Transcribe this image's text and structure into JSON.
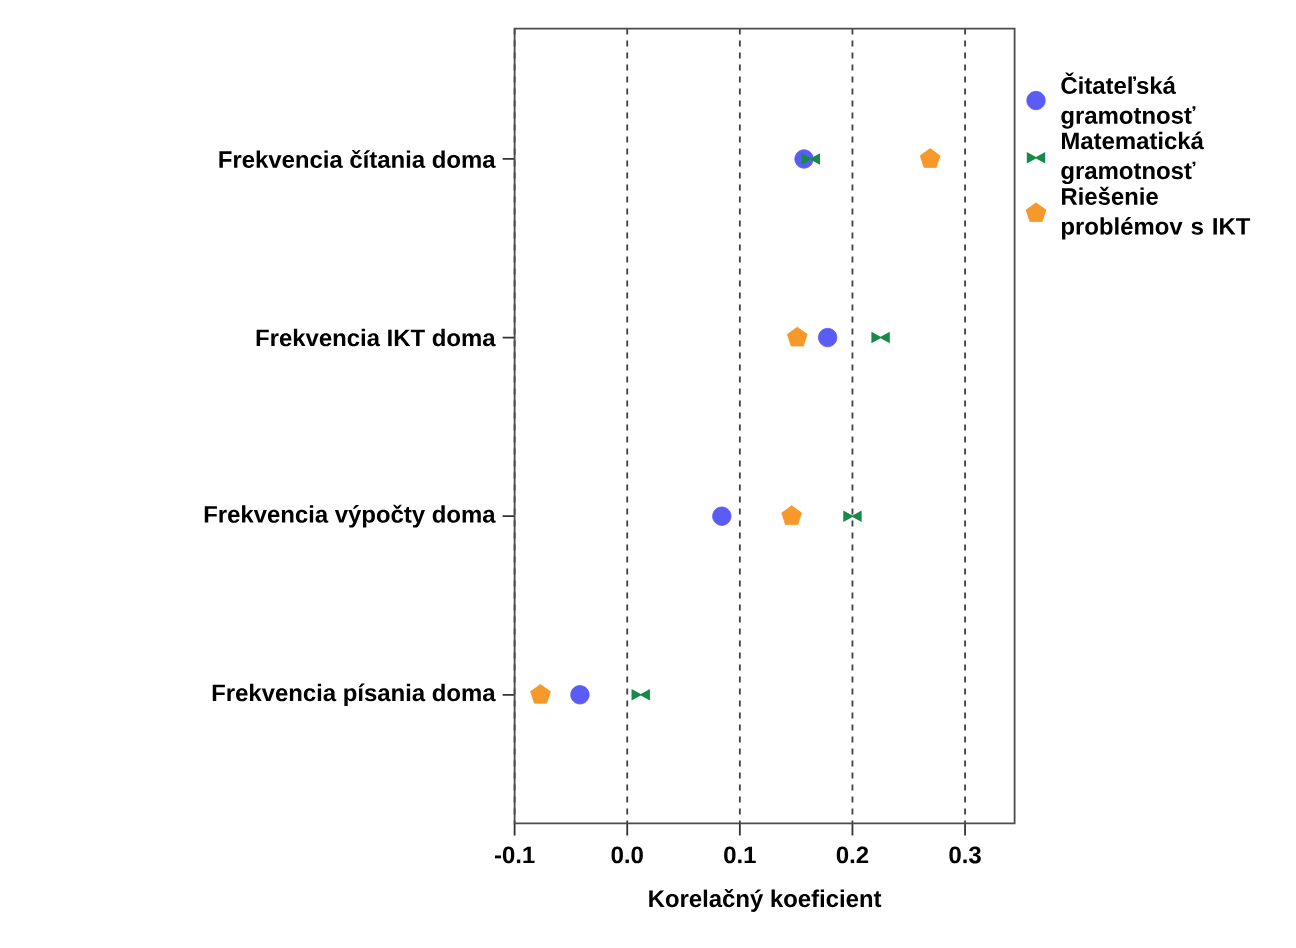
{
  "chart_data": {
    "type": "scatter",
    "orientation": "horizontal",
    "xlabel": "Korelačný koeficient",
    "categories": [
      "Frekvencia čítania doma",
      "Frekvencia IKT doma",
      "Frekvencia výpočty doma",
      "Frekvencia písania doma"
    ],
    "series": [
      {
        "name": "Čitateľská gramotnosť",
        "color": "#5b5cf6",
        "marker": "circle",
        "values": [
          0.157,
          0.178,
          0.084,
          -0.042
        ]
      },
      {
        "name": "Matematická gramotnosť",
        "color": "#168a48",
        "values": [
          0.163,
          0.225,
          0.2,
          0.012
        ]
      },
      {
        "name": "Riešenie problémov s IKT",
        "color": "#f7982a",
        "values": [
          0.269,
          0.151,
          0.146,
          -0.077
        ]
      }
    ],
    "xlim": [
      -0.1,
      0.344
    ],
    "xticks": [
      -0.1,
      {
        "value": 0,
        "label": "0.0"
      },
      0.1,
      0.2,
      0.3
    ],
    "grid": "x",
    "legend": "right"
  }
}
